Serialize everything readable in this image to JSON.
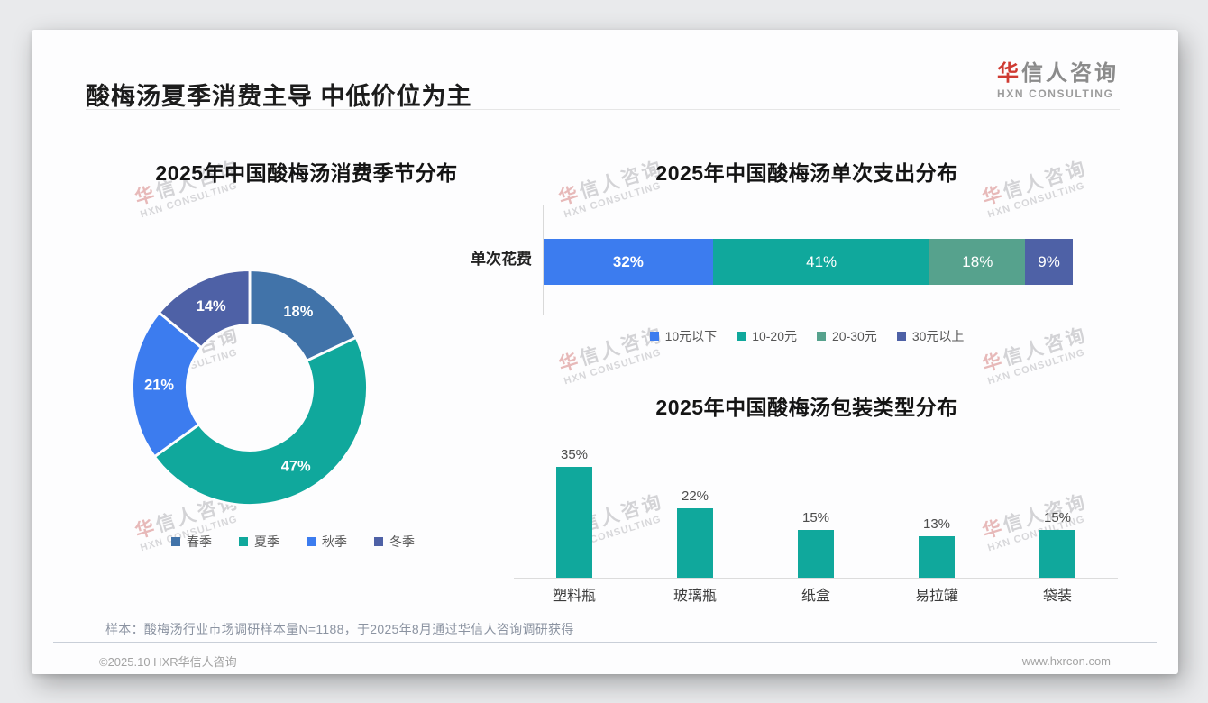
{
  "header": {
    "title": "酸梅汤夏季消费主导 中低价位为主",
    "logo": {
      "cn_accent": "华",
      "cn_rest": "信人咨询",
      "en": "HXN CONSULTING"
    }
  },
  "watermark": {
    "cn_accent": "华",
    "cn_rest": "信人咨询",
    "en": "HXN CONSULTING"
  },
  "colors": {
    "accent_red": "#cf3a32",
    "teal": "#10a89c",
    "bright_blue": "#3c7cef",
    "steel_blue": "#4173a9",
    "indigo": "#4e61a6",
    "sea_green": "#56a28d"
  },
  "chart_data": [
    {
      "type": "pie",
      "variant": "donut",
      "title": "2025年中国酸梅汤消费季节分布",
      "categories": [
        "春季",
        "夏季",
        "秋季",
        "冬季"
      ],
      "values": [
        18,
        47,
        21,
        14
      ],
      "labels": [
        "18%",
        "47%",
        "21%",
        "14%"
      ],
      "colors": [
        "#4173a9",
        "#10a89c",
        "#3c7cef",
        "#4e61a6"
      ],
      "legend_position": "bottom",
      "start_angle": 0,
      "direction": "clockwise"
    },
    {
      "type": "bar",
      "variant": "stacked-horizontal",
      "title": "2025年中国酸梅汤单次支出分布",
      "row_label": "单次花费",
      "categories": [
        "10元以下",
        "10-20元",
        "20-30元",
        "30元以上"
      ],
      "values": [
        32,
        41,
        18,
        9
      ],
      "labels": [
        "32%",
        "41%",
        "18%",
        "9%"
      ],
      "colors": [
        "#3c7cef",
        "#10a89c",
        "#56a28d",
        "#4e61a6"
      ],
      "legend_position": "bottom",
      "xlim": [
        0,
        100
      ]
    },
    {
      "type": "bar",
      "variant": "vertical",
      "title": "2025年中国酸梅汤包装类型分布",
      "categories": [
        "塑料瓶",
        "玻璃瓶",
        "纸盒",
        "易拉罐",
        "袋装"
      ],
      "values": [
        35,
        22,
        15,
        13,
        15
      ],
      "labels": [
        "35%",
        "22%",
        "15%",
        "13%",
        "15%"
      ],
      "bar_color": "#10a89c",
      "ylim": [
        0,
        40
      ],
      "grid": false
    }
  ],
  "footnote": {
    "sample": "样本：酸梅汤行业市场调研样本量N=1188，于2025年8月通过华信人咨询调研获得"
  },
  "footer": {
    "left": "©2025.10 HXR华信人咨询",
    "right": "www.hxrcon.com"
  }
}
